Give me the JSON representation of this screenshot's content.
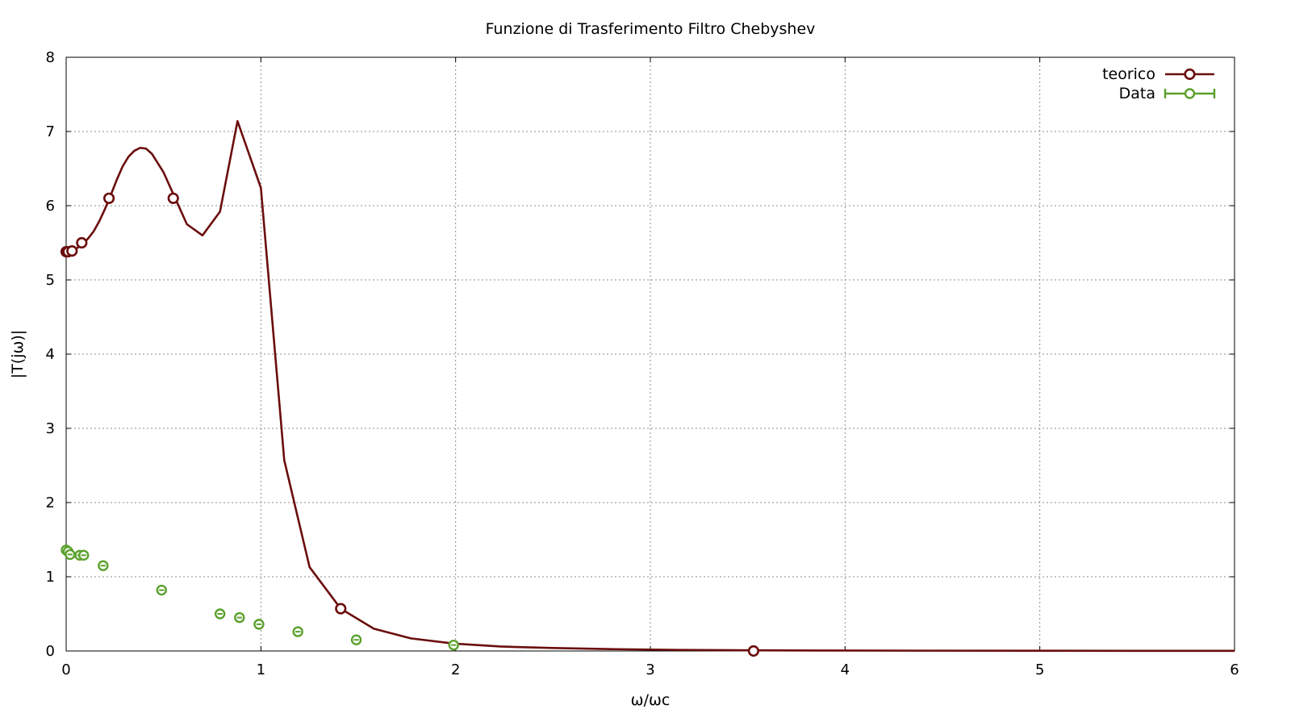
{
  "chart_data": {
    "type": "line",
    "title": "Funzione di Trasferimento Filtro Chebyshev",
    "xlabel": "ω/ωc",
    "ylabel": "|T(jω)|",
    "xlim": [
      0,
      6
    ],
    "ylim": [
      0,
      8
    ],
    "x_ticks": [
      "0",
      "1",
      "2",
      "3",
      "4",
      "5",
      "6"
    ],
    "y_ticks": [
      "0",
      "1",
      "2",
      "3",
      "4",
      "5",
      "6",
      "7",
      "8"
    ],
    "grid": true,
    "legend_position": "top-right",
    "series": [
      {
        "name": "teorico",
        "color": "#6b0d0d",
        "style": "line",
        "x": [
          0,
          0.02,
          0.05,
          0.08,
          0.11,
          0.14,
          0.17,
          0.2,
          0.23,
          0.26,
          0.29,
          0.32,
          0.35,
          0.38,
          0.41,
          0.44,
          0.5,
          0.56,
          0.62,
          0.7,
          0.79,
          0.88,
          1.0,
          1.12,
          1.25,
          1.41,
          1.58,
          1.77,
          1.99,
          2.23,
          2.5,
          2.8,
          3.14,
          3.53,
          3.96,
          4.44,
          4.98,
          5.59,
          6.0
        ],
        "y": [
          5.38,
          5.39,
          5.42,
          5.47,
          5.55,
          5.65,
          5.79,
          5.96,
          6.15,
          6.35,
          6.53,
          6.66,
          6.74,
          6.78,
          6.77,
          6.7,
          6.45,
          6.1,
          5.75,
          5.6,
          5.92,
          7.14,
          6.24,
          2.57,
          1.13,
          0.57,
          0.3,
          0.17,
          0.1,
          0.06,
          0.04,
          0.025,
          0.015,
          0.009,
          0.006,
          0.004,
          0.003,
          0.002,
          0.002
        ]
      },
      {
        "name": "teorico-markers",
        "color": "#6b0d0d",
        "style": "markers",
        "x": [
          0,
          0.01,
          0.03,
          0.08,
          0.22,
          0.55,
          1.41,
          3.53
        ],
        "y": [
          5.38,
          5.38,
          5.39,
          5.5,
          6.1,
          6.1,
          0.57,
          0.0
        ]
      },
      {
        "name": "Data",
        "color": "#5aa02c",
        "style": "markers",
        "x": [
          0.0,
          0.01,
          0.02,
          0.07,
          0.09,
          0.19,
          0.49,
          0.79,
          0.89,
          0.99,
          1.19,
          1.49,
          1.99
        ],
        "y": [
          1.36,
          1.34,
          1.3,
          1.29,
          1.29,
          1.15,
          0.82,
          0.5,
          0.45,
          0.36,
          0.26,
          0.15,
          0.08
        ]
      }
    ]
  }
}
